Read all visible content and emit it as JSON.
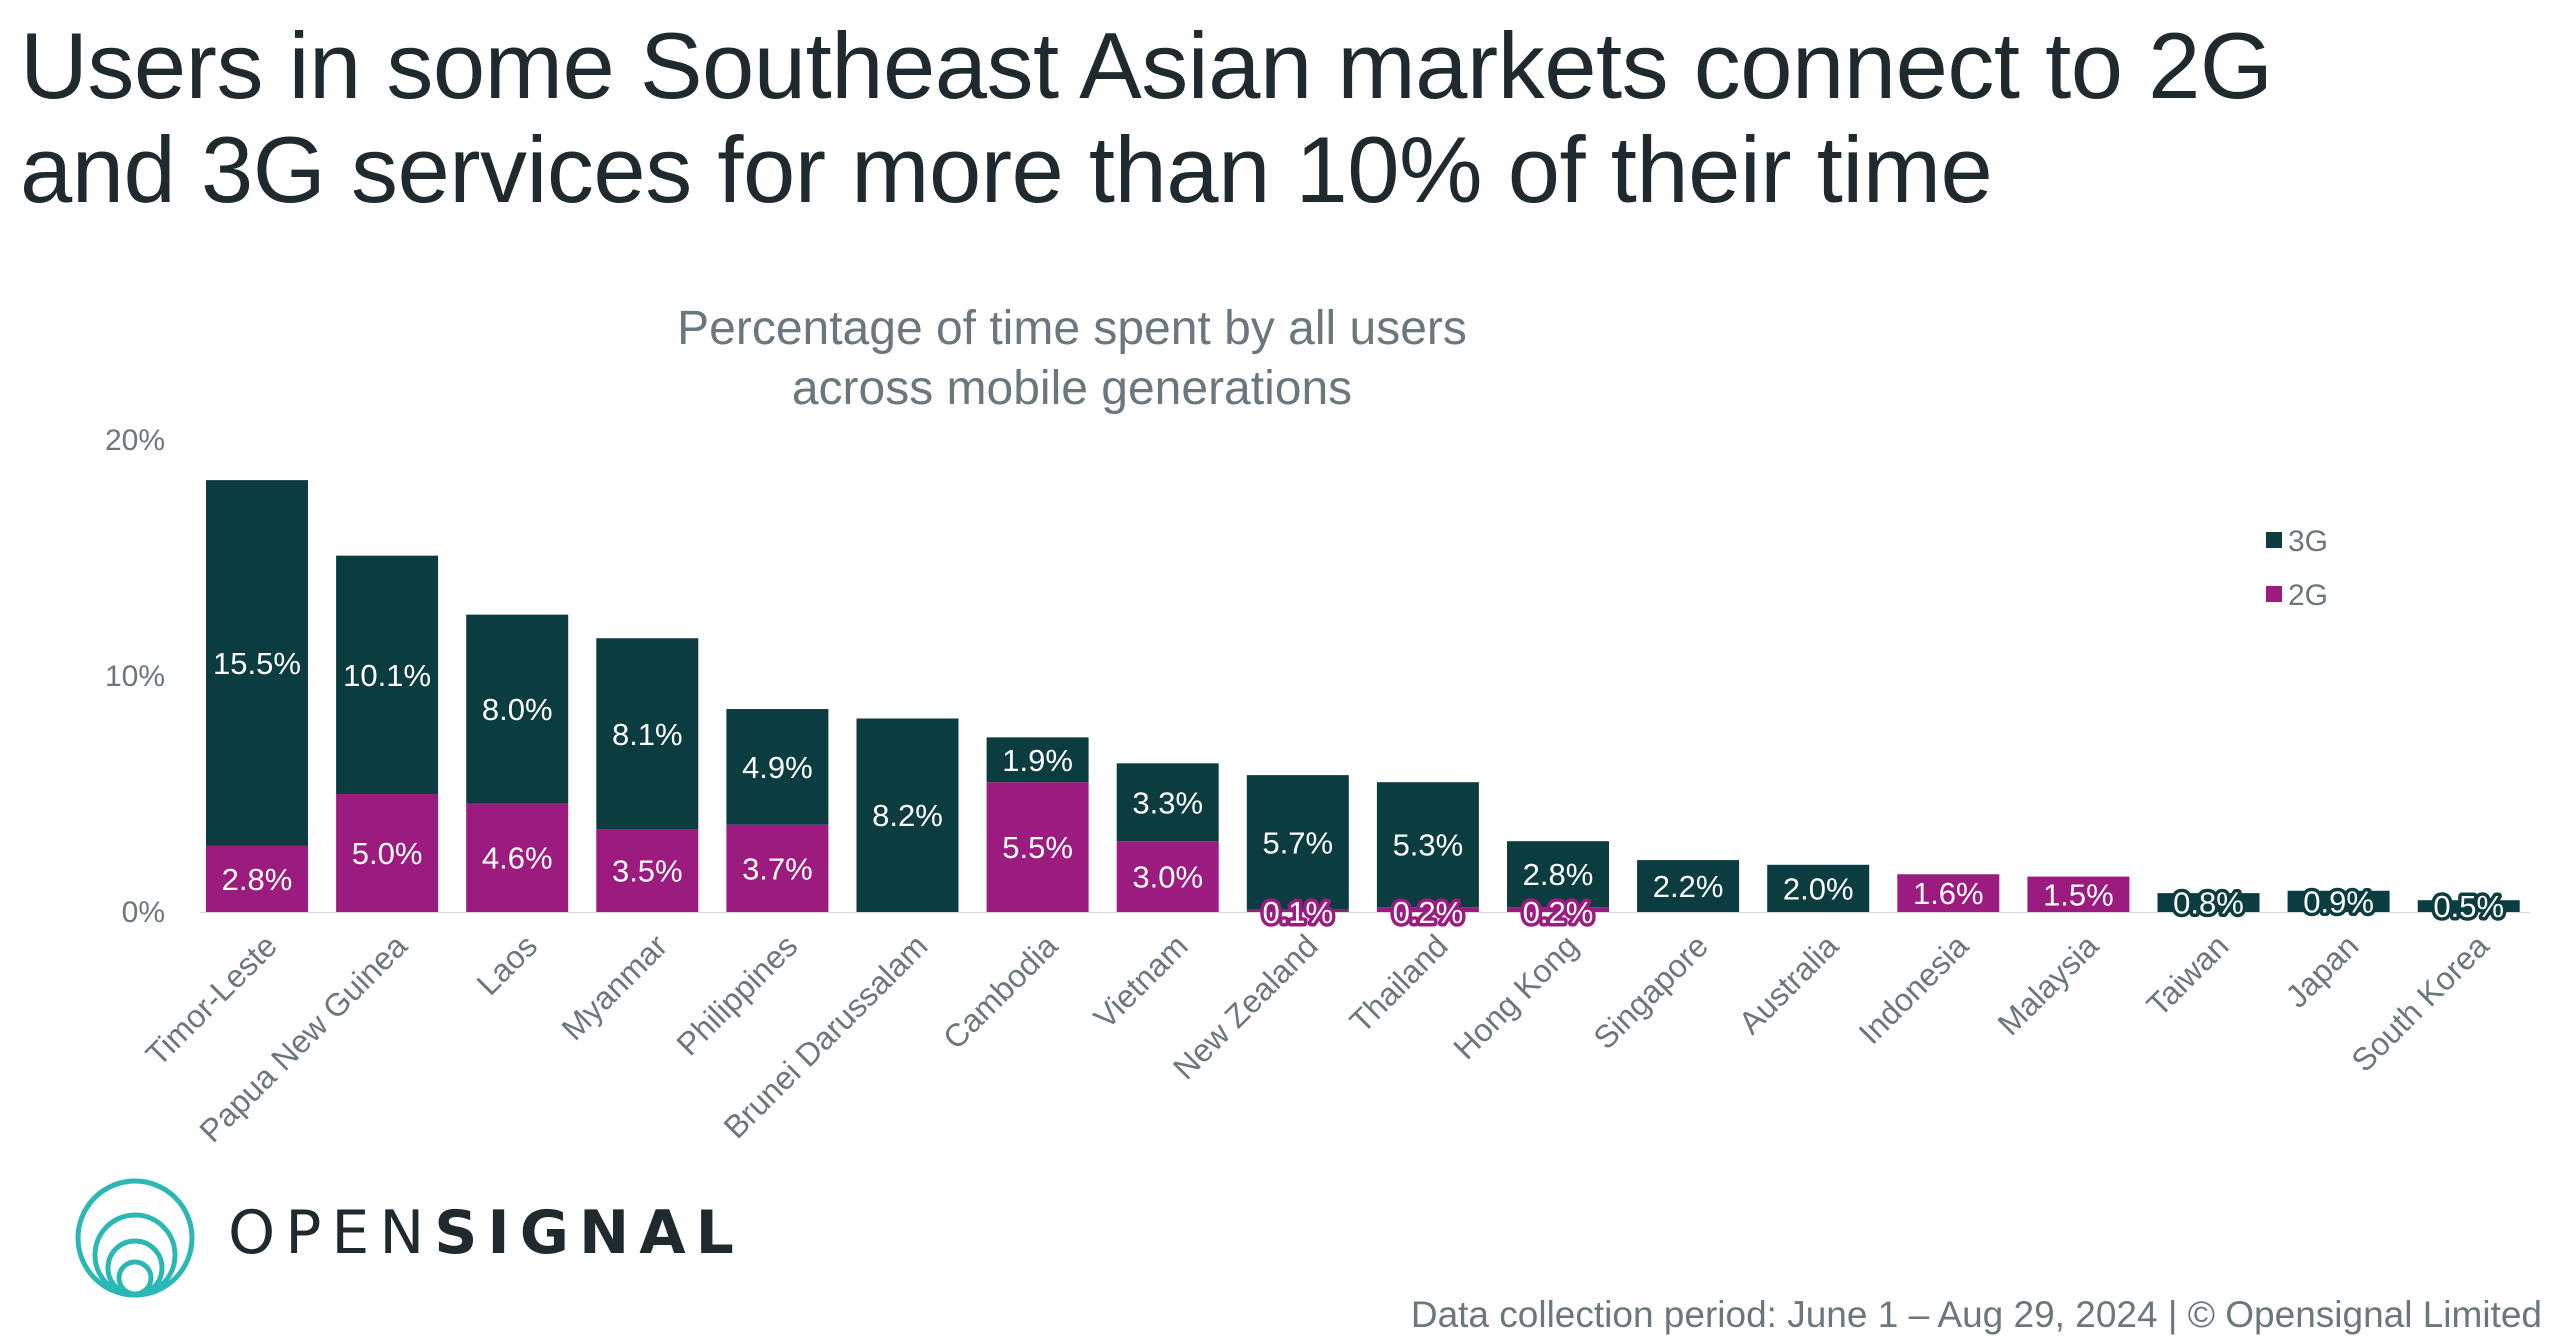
{
  "headline": {
    "line1": "Users in some Southeast Asian markets connect to 2G",
    "line2": "and 3G services for more than 10% of their time"
  },
  "brand": {
    "part1": "OPEN",
    "part2": "SIGNAL",
    "logo_icon": "opensignal-rings-icon"
  },
  "footnote": "Data collection period: June 1 – Aug 29, 2024 | © Opensignal Limited",
  "colors": {
    "3G": "#0b3c40",
    "2G": "#9b1b7f",
    "logo": "#2bb7b3"
  },
  "chart_data": {
    "type": "bar",
    "stacked": true,
    "title": "",
    "subtitle_lines": [
      "Percentage of time spent by all users",
      "across mobile generations"
    ],
    "xlabel": "",
    "ylabel": "",
    "ylim": [
      0,
      20
    ],
    "yticks": [
      {
        "value": 0,
        "label": "0%"
      },
      {
        "value": 10,
        "label": "10%"
      },
      {
        "value": 20,
        "label": "20%"
      }
    ],
    "grid": false,
    "legend_position": "right",
    "categories": [
      "Timor-Leste",
      "Papua New Guinea",
      "Laos",
      "Myanmar",
      "Philippines",
      "Brunei Darussalam",
      "Cambodia",
      "Vietnam",
      "New Zealand",
      "Thailand",
      "Hong Kong",
      "Singapore",
      "Australia",
      "Indonesia",
      "Malaysia",
      "Taiwan",
      "Japan",
      "South Korea"
    ],
    "series": [
      {
        "name": "2G",
        "values": [
          2.8,
          5.0,
          4.6,
          3.5,
          3.7,
          null,
          5.5,
          3.0,
          0.1,
          0.2,
          0.2,
          null,
          null,
          1.6,
          1.5,
          null,
          null,
          null
        ],
        "labels": [
          "2.8%",
          "5.0%",
          "4.6%",
          "3.5%",
          "3.7%",
          "",
          "5.5%",
          "3.0%",
          "0.1%",
          "0.2%",
          "0.2%",
          "",
          "",
          "1.6%",
          "1.5%",
          "",
          "",
          ""
        ]
      },
      {
        "name": "3G",
        "values": [
          15.5,
          10.1,
          8.0,
          8.1,
          4.9,
          8.2,
          1.9,
          3.3,
          5.7,
          5.3,
          2.8,
          2.2,
          2.0,
          null,
          null,
          0.8,
          0.9,
          0.5
        ],
        "labels": [
          "15.5%",
          "10.1%",
          "8.0%",
          "8.1%",
          "4.9%",
          "8.2%",
          "1.9%",
          "3.3%",
          "5.7%",
          "5.3%",
          "2.8%",
          "2.2%",
          "2.0%",
          "",
          "",
          "0.8%",
          "0.9%",
          "0.5%"
        ]
      }
    ]
  }
}
